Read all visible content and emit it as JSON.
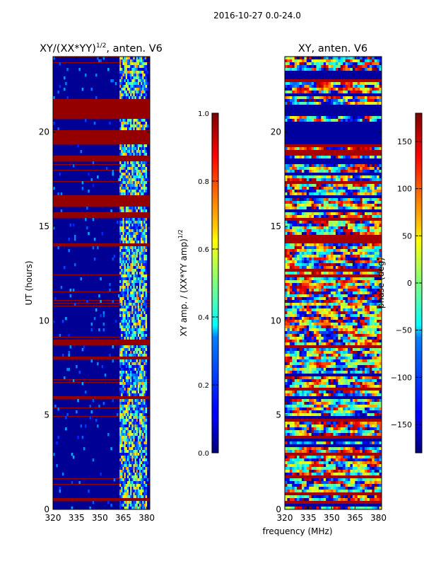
{
  "figure": {
    "suptitle": "2016-10-27 0.0-24.0"
  },
  "chart_data": [
    {
      "type": "heatmap",
      "title": "XY/(XX*YY)^{1/2}, anten. V6",
      "title_main": "XY/(XX*YY)",
      "title_sup": "1/2",
      "title_rest": ", anten. V6",
      "xlabel": "",
      "ylabel": "UT (hours)",
      "xlim": [
        320,
        382
      ],
      "ylim": [
        0,
        24
      ],
      "x_ticks": [
        320,
        335,
        350,
        365,
        380
      ],
      "y_ticks": [
        0,
        5,
        10,
        15,
        20
      ],
      "colorbar": {
        "label": "XY amp. / (XX*YY amp)^{1/2}",
        "label_main": "XY amp. / (XX*YY amp)",
        "label_sup": "1/2",
        "range": [
          0.0,
          1.0
        ],
        "ticks": [
          "0.0",
          "0.2",
          "0.4",
          "0.6",
          "0.8",
          "1.0"
        ],
        "cmap": "jet"
      },
      "saturated_time_bands_hours": [
        [
          0.45,
          0.6
        ],
        [
          19.4,
          20.1
        ],
        [
          20.7,
          21.8
        ],
        [
          18.4,
          18.8
        ],
        [
          15.4,
          15.8
        ],
        [
          16.1,
          16.6
        ],
        [
          8.7,
          8.95
        ],
        [
          13.9,
          14.05
        ],
        [
          5.9,
          6.05
        ],
        [
          7.9,
          8.1
        ]
      ],
      "active_frequency_range_mhz": [
        363,
        380
      ]
    },
    {
      "type": "heatmap",
      "title": "XY, anten. V6",
      "xlabel": "frequency (MHz)",
      "ylabel": "",
      "xlim": [
        320,
        382
      ],
      "ylim": [
        0,
        24
      ],
      "x_ticks": [
        320,
        335,
        350,
        365,
        380
      ],
      "y_ticks": [
        0,
        5,
        10,
        15,
        20
      ],
      "colorbar": {
        "label": "phase (deg)",
        "range": [
          -180,
          180
        ],
        "ticks": [
          "150",
          "100",
          "50",
          "0",
          "−50",
          "−100",
          "−150"
        ],
        "tick_values": [
          150,
          100,
          50,
          0,
          -50,
          -100,
          -150
        ],
        "cmap": "jet"
      },
      "low_phase_time_bands_hours": [
        [
          19.5,
          20.5
        ],
        [
          20.9,
          21.5
        ],
        [
          22.8,
          23.3
        ]
      ]
    }
  ]
}
